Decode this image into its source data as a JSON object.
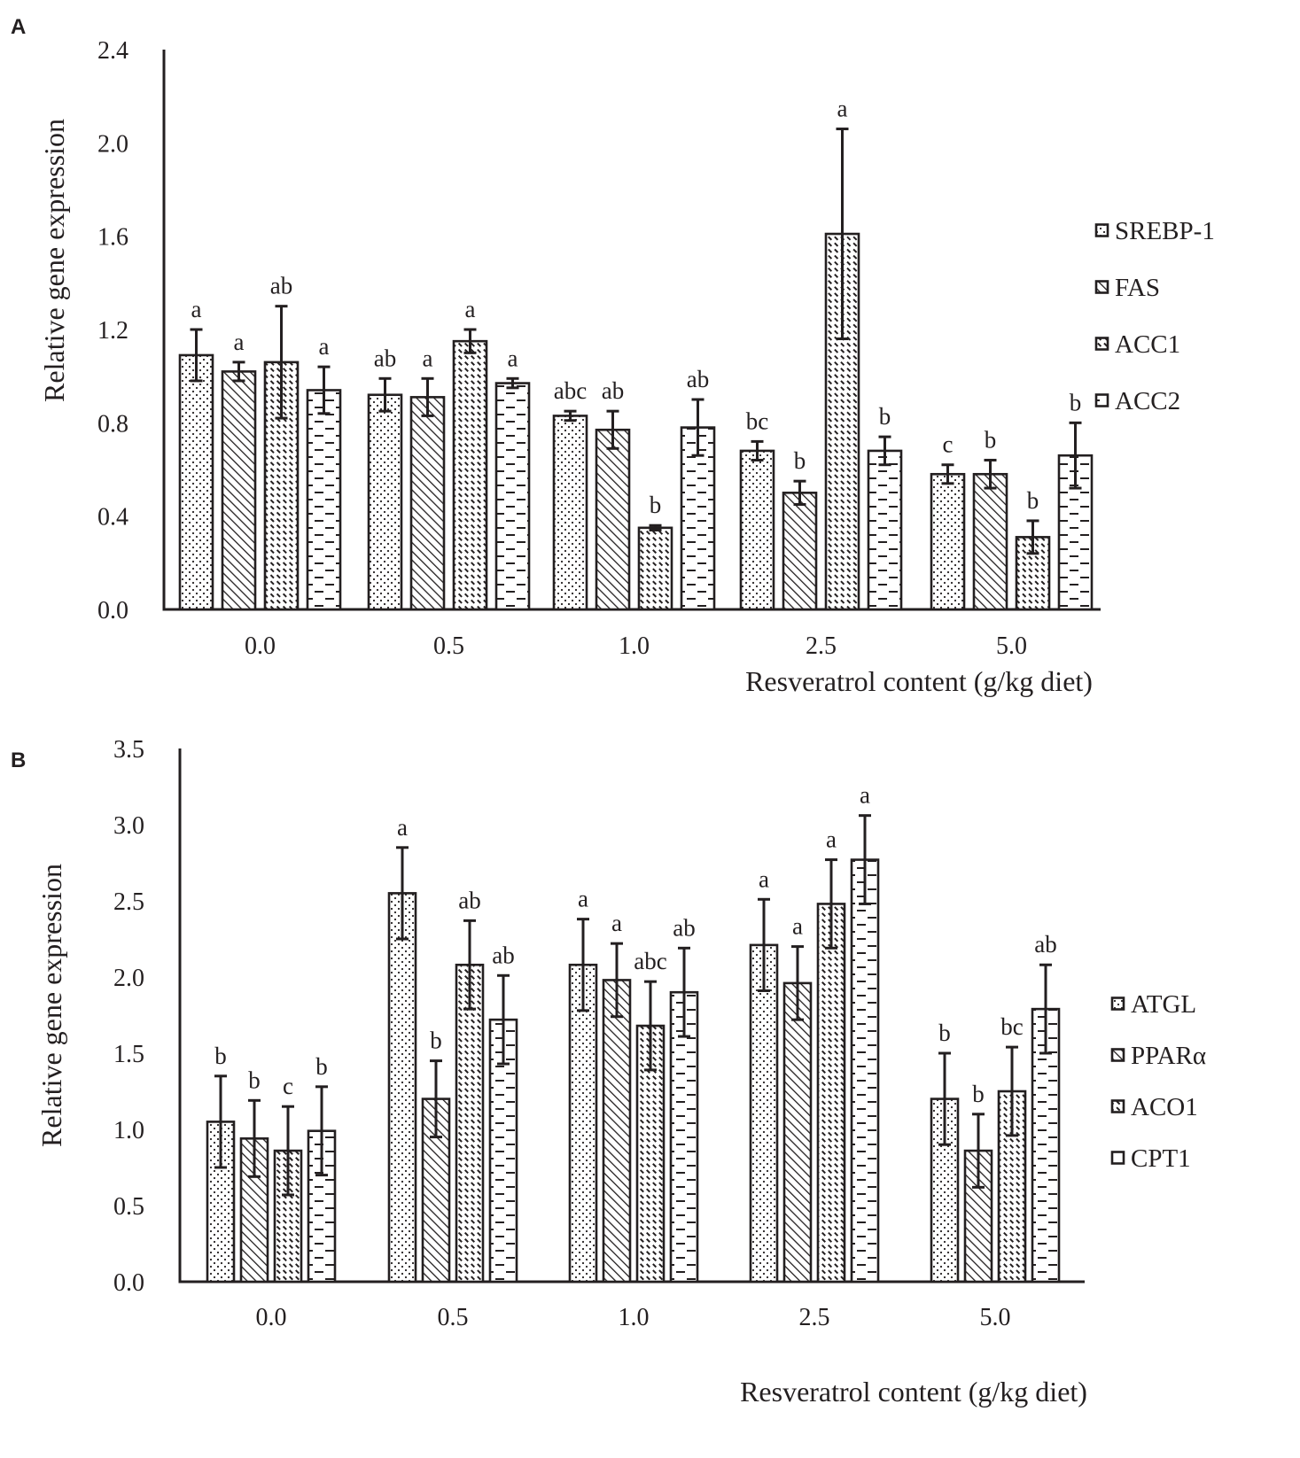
{
  "colors": {
    "ink": "#231f20",
    "background": "#ffffff"
  },
  "chart_data": [
    {
      "type": "bar",
      "panel_label": "A",
      "title": "",
      "xlabel": "Resveratrol content (g/kg diet)",
      "ylabel": "Relative gene expression",
      "ylim": [
        0,
        2.4
      ],
      "y_ticks": [
        "0.0",
        "0.4",
        "0.8",
        "1.2",
        "1.6",
        "2.0",
        "2.4"
      ],
      "categories": [
        "0.0",
        "0.5",
        "1.0",
        "2.5",
        "5.0"
      ],
      "legend_position": "right",
      "series": [
        {
          "name": "SREBP-1",
          "pattern": "dots",
          "values": [
            1.09,
            0.92,
            0.83,
            0.68,
            0.58
          ],
          "errors": [
            0.11,
            0.07,
            0.02,
            0.04,
            0.04
          ],
          "labels": [
            "a",
            "ab",
            "abc",
            "bc",
            "c"
          ]
        },
        {
          "name": "FAS",
          "pattern": "diag",
          "values": [
            1.02,
            0.91,
            0.77,
            0.5,
            0.58
          ],
          "errors": [
            0.04,
            0.08,
            0.08,
            0.05,
            0.06
          ],
          "labels": [
            "a",
            "a",
            "ab",
            "b",
            "b"
          ]
        },
        {
          "name": "ACC1",
          "pattern": "dashdiag",
          "values": [
            1.06,
            1.15,
            0.35,
            1.61,
            0.31
          ],
          "errors": [
            0.24,
            0.05,
            0.01,
            0.45,
            0.07
          ],
          "labels": [
            "ab",
            "a",
            "b",
            "a",
            "b"
          ]
        },
        {
          "name": "ACC2",
          "pattern": "hdash",
          "values": [
            0.94,
            0.97,
            0.78,
            0.68,
            0.66
          ],
          "errors": [
            0.1,
            0.02,
            0.12,
            0.06,
            0.14
          ],
          "labels": [
            "a",
            "a",
            "ab",
            "b",
            "b"
          ]
        }
      ]
    },
    {
      "type": "bar",
      "panel_label": "B",
      "title": "",
      "xlabel": "Resveratrol content (g/kg diet)",
      "ylabel": "Relative gene expression",
      "ylim": [
        0,
        3.5
      ],
      "y_ticks": [
        "0.0",
        "0.5",
        "1.0",
        "1.5",
        "2.0",
        "2.5",
        "3.0",
        "3.5"
      ],
      "categories": [
        "0.0",
        "0.5",
        "1.0",
        "2.5",
        "5.0"
      ],
      "legend_position": "right",
      "series": [
        {
          "name": "ATGL",
          "pattern": "dots",
          "values": [
            1.05,
            2.55,
            2.08,
            2.21,
            1.2
          ],
          "errors": [
            0.3,
            0.3,
            0.3,
            0.3,
            0.3
          ],
          "labels": [
            "b",
            "a",
            "a",
            "a",
            "b"
          ]
        },
        {
          "name": "PPARα",
          "pattern": "diag",
          "values": [
            0.94,
            1.2,
            1.98,
            1.96,
            0.86
          ],
          "errors": [
            0.25,
            0.25,
            0.24,
            0.24,
            0.24
          ],
          "labels": [
            "b",
            "b",
            "a",
            "a",
            "b"
          ]
        },
        {
          "name": "ACO1",
          "pattern": "dashdiag",
          "values": [
            0.86,
            2.08,
            1.68,
            2.48,
            1.25
          ],
          "errors": [
            0.29,
            0.29,
            0.29,
            0.29,
            0.29
          ],
          "labels": [
            "c",
            "ab",
            "abc",
            "a",
            "bc"
          ]
        },
        {
          "name": "CPT1",
          "pattern": "hdash",
          "values": [
            0.99,
            1.72,
            1.9,
            2.77,
            1.79
          ],
          "errors": [
            0.29,
            0.29,
            0.29,
            0.29,
            0.29
          ],
          "labels": [
            "b",
            "ab",
            "ab",
            "a",
            "ab"
          ]
        }
      ]
    }
  ]
}
